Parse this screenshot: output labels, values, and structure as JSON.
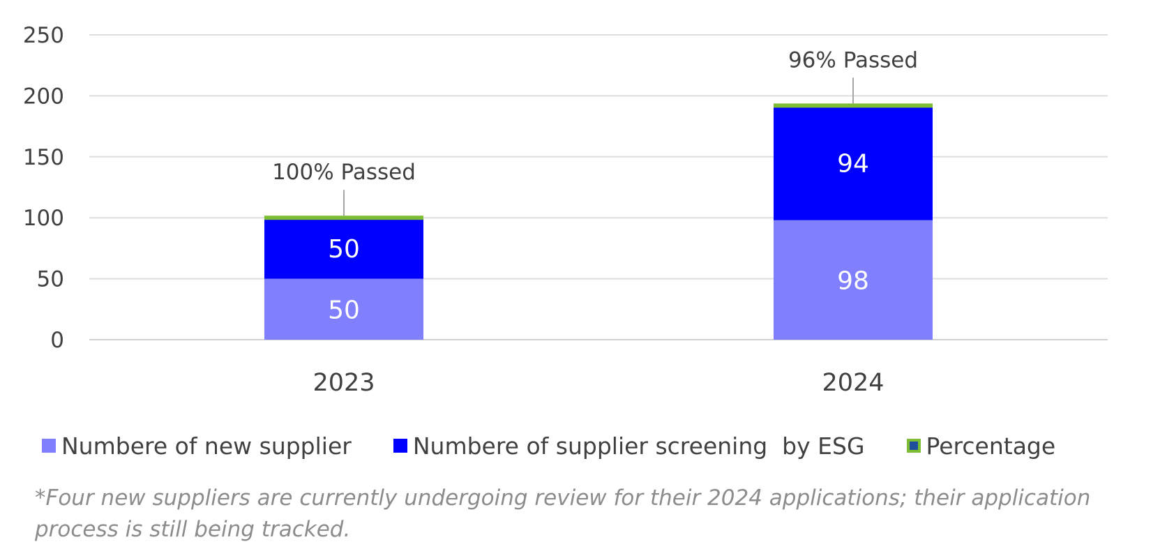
{
  "chart_data": {
    "type": "bar",
    "stacked": true,
    "categories": [
      "2023",
      "2024"
    ],
    "series": [
      {
        "name": "Numbere of new supplier",
        "values": [
          50,
          98
        ],
        "color": "#8080ff"
      },
      {
        "name": "Numbere of supplier screening  by ESG",
        "values": [
          50,
          94
        ],
        "color": "#0000ff"
      },
      {
        "name": "Percentage",
        "values": [
          1,
          1
        ],
        "color": "#7cbd33",
        "marker_fill": "#1f4e9c"
      }
    ],
    "data_labels": {
      "new_supplier": [
        "50",
        "98"
      ],
      "screening": [
        "50",
        "94"
      ]
    },
    "annotations": [
      "100% Passed",
      "96% Passed"
    ],
    "y_ticks": [
      "0",
      "50",
      "100",
      "150",
      "200",
      "250"
    ],
    "ylim": [
      0,
      250
    ],
    "grid": true,
    "legend_position": "bottom",
    "title": "",
    "xlabel": "",
    "ylabel": ""
  },
  "footnote": "*Four new suppliers are currently undergoing review for their 2024 applications; their application process is still being tracked."
}
